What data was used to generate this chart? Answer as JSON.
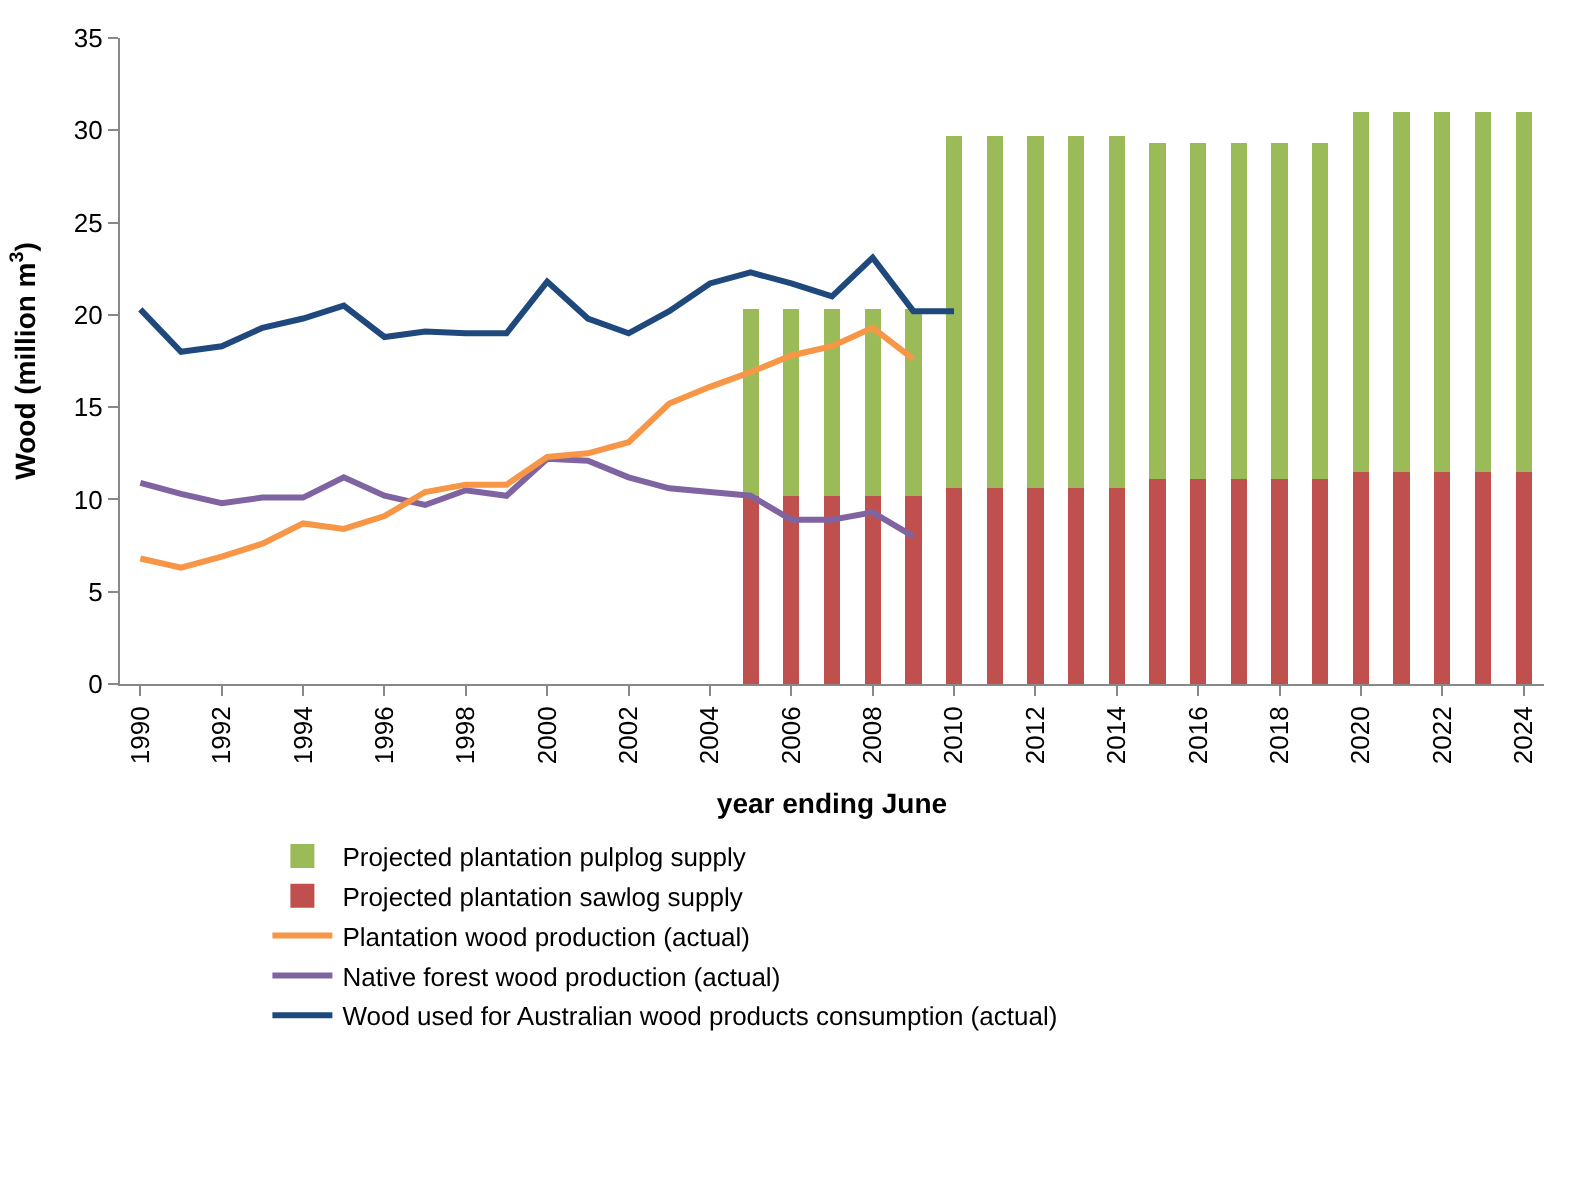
{
  "chart_data": {
    "type": "line",
    "xlabel": "year ending June",
    "ylabel": "Wood (million m$^{3}$)",
    "xlim": [
      1989.5,
      2024.5
    ],
    "xticks": [
      1990,
      1992,
      1994,
      1996,
      1998,
      2000,
      2002,
      2004,
      2006,
      2008,
      2010,
      2012,
      2014,
      2016,
      2018,
      2020,
      2022,
      2024
    ],
    "ylim": [
      0,
      35
    ],
    "yticks": [
      0,
      5,
      10,
      15,
      20,
      25,
      30,
      35
    ],
    "grid": false,
    "legend": "bottom",
    "stacked": true,
    "marker": "none",
    "line_style": "solid",
    "series": [
      {
        "name": "Wood used for Australian wood products consumption (actual)",
        "color": "#1f497d",
        "x": [
          1990,
          1991,
          1992,
          1993,
          1994,
          1995,
          1996,
          1997,
          1998,
          1999,
          2000,
          2001,
          2002,
          2003,
          2004,
          2005,
          2006,
          2007,
          2008,
          2009,
          2010
        ],
        "values": [
          20.3,
          18.0,
          18.3,
          19.3,
          19.8,
          20.5,
          18.8,
          19.1,
          19.0,
          19.0,
          21.8,
          19.8,
          19.0,
          20.2,
          21.7,
          22.3,
          21.7,
          21.0,
          23.1,
          20.2,
          20.2
        ]
      },
      {
        "name": "Native forest wood production (actual)",
        "color": "#8064a2",
        "x": [
          1990,
          1991,
          1992,
          1993,
          1994,
          1995,
          1996,
          1997,
          1998,
          1999,
          2000,
          2001,
          2002,
          2003,
          2004,
          2005,
          2006,
          2007,
          2008,
          2009
        ],
        "values": [
          10.9,
          10.3,
          9.8,
          10.1,
          10.1,
          11.2,
          10.2,
          9.7,
          10.5,
          10.2,
          12.2,
          12.1,
          11.2,
          10.6,
          10.4,
          10.2,
          8.9,
          8.9,
          9.3,
          8.0
        ]
      },
      {
        "name": "Plantation wood production (actual)",
        "color": "#f79646",
        "x": [
          1990,
          1991,
          1992,
          1993,
          1994,
          1995,
          1996,
          1997,
          1998,
          1999,
          2000,
          2001,
          2002,
          2003,
          2004,
          2005,
          2006,
          2007,
          2008,
          2009
        ],
        "values": [
          6.8,
          6.3,
          6.9,
          7.6,
          8.7,
          8.4,
          9.1,
          10.4,
          10.8,
          10.8,
          12.3,
          12.5,
          13.1,
          15.2,
          16.1,
          16.9,
          17.8,
          18.3,
          19.3,
          17.6
        ]
      },
      {
        "name": "Projected plantation sawlog supply",
        "type": "bar",
        "color": "#c0504d",
        "x": [
          2005,
          2006,
          2007,
          2008,
          2009,
          2010,
          2011,
          2012,
          2013,
          2014,
          2015,
          2016,
          2017,
          2018,
          2019,
          2020,
          2021,
          2022,
          2023,
          2024
        ],
        "values": [
          10.2,
          10.2,
          10.2,
          10.2,
          10.2,
          10.6,
          10.6,
          10.6,
          10.6,
          10.6,
          11.1,
          11.1,
          11.1,
          11.1,
          11.1,
          11.5,
          11.5,
          11.5,
          11.5,
          11.5
        ]
      },
      {
        "name": "Projected plantation pulplog supply",
        "type": "bar",
        "color": "#9bbb59",
        "x": [
          2005,
          2006,
          2007,
          2008,
          2009,
          2010,
          2011,
          2012,
          2013,
          2014,
          2015,
          2016,
          2017,
          2018,
          2019,
          2020,
          2021,
          2022,
          2023,
          2024
        ],
        "values": [
          10.1,
          10.1,
          10.1,
          10.1,
          10.1,
          19.1,
          19.1,
          19.1,
          19.1,
          19.1,
          18.2,
          18.2,
          18.2,
          18.2,
          18.2,
          19.5,
          19.5,
          19.5,
          19.5,
          19.5
        ]
      }
    ]
  }
}
